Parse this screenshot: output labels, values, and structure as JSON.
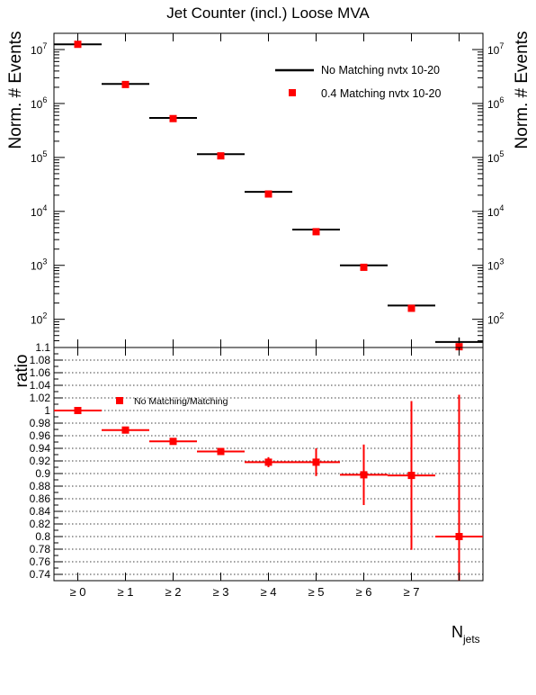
{
  "chart_data": [
    {
      "type": "scatter",
      "title": "Jet Counter (incl.) Loose MVA",
      "ylabel": "Norm. # Events",
      "ylabel_right": "Norm. # Events",
      "yscale": "log",
      "ylim": [
        30,
        20000000
      ],
      "y_tick_labels": [
        "10",
        "10",
        "10",
        "10",
        "10",
        "10"
      ],
      "y_tick_exponents": [
        "2",
        "3",
        "4",
        "5",
        "6",
        "7"
      ],
      "categories": [
        "≥ 0",
        "≥ 1",
        "≥ 2",
        "≥ 3",
        "≥ 4",
        "≥ 5",
        "≥ 6",
        "≥ 7",
        ""
      ],
      "series": [
        {
          "name": "No Matching nvtx 10-20",
          "style": "line",
          "color": "#000000",
          "values": [
            12500000,
            2300000,
            540000,
            115000,
            23000,
            4600,
            1000,
            180,
            38
          ]
        },
        {
          "name": "0.4 Matching nvtx 10-20",
          "style": "marker",
          "color": "#ff0000",
          "values": [
            12500000,
            2250000,
            525000,
            107000,
            21000,
            4200,
            920,
            160,
            31
          ]
        }
      ],
      "legend": "top-right"
    },
    {
      "type": "scatter",
      "ylabel": "ratio",
      "xlabel": "N",
      "xlabel_sub": "jets",
      "ylim": [
        0.73,
        1.1
      ],
      "y_tick_labels": [
        "0.74",
        "0.76",
        "0.78",
        "0.8",
        "0.82",
        "0.84",
        "0.86",
        "0.88",
        "0.9",
        "0.92",
        "0.94",
        "0.96",
        "0.98",
        "1",
        "1.02",
        "1.04",
        "1.06",
        "1.08",
        "1.1"
      ],
      "grid": true,
      "categories": [
        "≥ 0",
        "≥ 1",
        "≥ 2",
        "≥ 3",
        "≥ 4",
        "≥ 5",
        "≥ 6",
        "≥ 7",
        ""
      ],
      "series": [
        {
          "name": "No Matching/Matching",
          "color": "#ff0000",
          "values": [
            1.0,
            0.969,
            0.951,
            0.935,
            0.918,
            0.918,
            0.898,
            0.897,
            0.8
          ],
          "errors": [
            0.0005,
            0.002,
            0.003,
            0.005,
            0.008,
            0.022,
            0.048,
            0.118,
            0.225
          ]
        }
      ],
      "legend": "top-left"
    }
  ]
}
